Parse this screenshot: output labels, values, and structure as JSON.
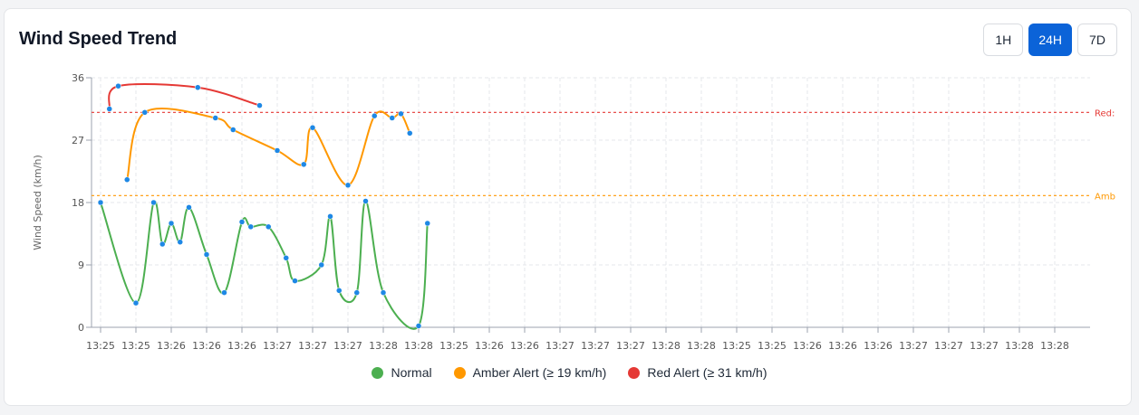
{
  "title": "Wind Speed Trend",
  "range_buttons": [
    {
      "label": "1H",
      "active": false
    },
    {
      "label": "24H",
      "active": true
    },
    {
      "label": "7D",
      "active": false
    }
  ],
  "colors": {
    "normal": "#4caf50",
    "amber": "#ff9800",
    "red": "#e53935",
    "point": "#1e88e5",
    "active_button": "#0b63d8"
  },
  "chart_data": {
    "type": "line",
    "ylabel": "Wind Speed (km/h)",
    "ylim": [
      0,
      36
    ],
    "yticks": [
      0,
      9,
      18,
      27,
      36
    ],
    "grid": true,
    "x_tick_labels": [
      "13:25",
      "13:25",
      "13:26",
      "13:26",
      "13:26",
      "13:27",
      "13:27",
      "13:27",
      "13:28",
      "13:28",
      "13:25",
      "13:26",
      "13:26",
      "13:27",
      "13:27",
      "13:27",
      "13:28",
      "13:28",
      "13:25",
      "13:25",
      "13:26",
      "13:26",
      "13:26",
      "13:27",
      "13:27",
      "13:27",
      "13:28",
      "13:28"
    ],
    "thresholds": [
      {
        "label": "Red:",
        "value": 31,
        "color": "#e53935"
      },
      {
        "label": "Amb",
        "value": 19,
        "color": "#ff9800"
      }
    ],
    "series": [
      {
        "name": "Normal",
        "color": "#4caf50",
        "points": [
          [
            0,
            18
          ],
          [
            1,
            3.5
          ],
          [
            1.5,
            18
          ],
          [
            1.75,
            12
          ],
          [
            2,
            15
          ],
          [
            2.25,
            12.3
          ],
          [
            2.5,
            17.3
          ],
          [
            3,
            10.5
          ],
          [
            3.5,
            5
          ],
          [
            4,
            15.2
          ],
          [
            4.25,
            14.5
          ],
          [
            4.75,
            14.5
          ],
          [
            5.25,
            10
          ],
          [
            5.5,
            6.7
          ],
          [
            6.25,
            9
          ],
          [
            6.5,
            16
          ],
          [
            6.75,
            5.3
          ],
          [
            7.25,
            5
          ],
          [
            7.5,
            18.2
          ],
          [
            8,
            5
          ],
          [
            9,
            0.2
          ],
          [
            9.25,
            15
          ]
        ]
      },
      {
        "name": "Amber Alert (≥ 19 km/h)",
        "color": "#ff9800",
        "points": [
          [
            0.75,
            21.3
          ],
          [
            1.25,
            31
          ],
          [
            3.25,
            30.2
          ],
          [
            3.75,
            28.5
          ],
          [
            5,
            25.5
          ],
          [
            5.75,
            23.5
          ],
          [
            6,
            28.8
          ],
          [
            7,
            20.5
          ],
          [
            7.75,
            30.5
          ],
          [
            8.25,
            30.2
          ],
          [
            8.5,
            30.8
          ],
          [
            8.75,
            28
          ]
        ]
      },
      {
        "name": "Red Alert (≥ 31 km/h)",
        "color": "#e53935",
        "points": [
          [
            0.25,
            31.5
          ],
          [
            0.5,
            34.8
          ],
          [
            2.75,
            34.6
          ],
          [
            4.5,
            32
          ]
        ]
      }
    ]
  }
}
